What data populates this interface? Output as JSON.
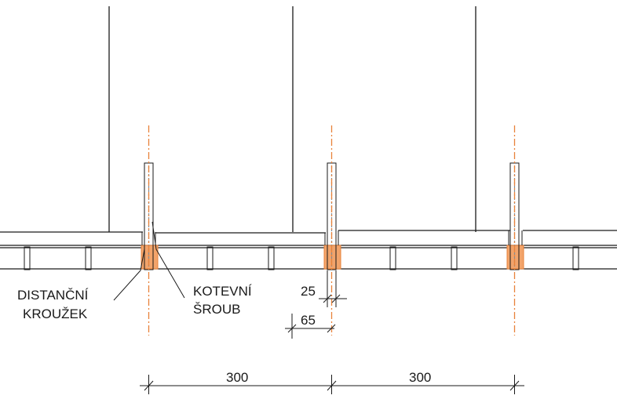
{
  "labels": {
    "spacer_line1": "DISTANČNÍ",
    "spacer_line2": "KROUŽEK",
    "bolt_line1": "KOTEVNÍ",
    "bolt_line2": "ŠROUB"
  },
  "dimensions": {
    "small_25": "25",
    "small_65": "65",
    "span_left": "300",
    "span_right": "300"
  },
  "colors": {
    "axis": "#e8823a",
    "spacer_ring": "#e8823a",
    "line": "#1a1a1a"
  }
}
